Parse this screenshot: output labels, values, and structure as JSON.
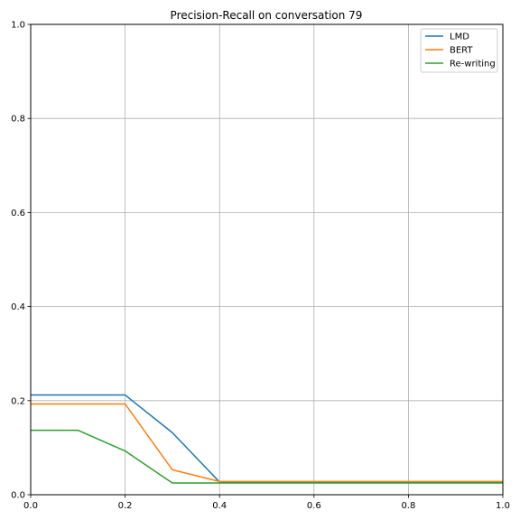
{
  "chart_data": {
    "type": "line",
    "title": "Precision-Recall on conversation 79",
    "xlabel": "",
    "ylabel": "",
    "xlim": [
      0.0,
      1.0
    ],
    "ylim": [
      0.0,
      1.0
    ],
    "xticks": [
      "0.0",
      "0.2",
      "0.4",
      "0.6",
      "0.8",
      "1.0"
    ],
    "yticks": [
      "0.0",
      "0.2",
      "0.4",
      "0.6",
      "0.8",
      "1.0"
    ],
    "grid": true,
    "legend_position": "top-right",
    "x": [
      0.0,
      0.1,
      0.2,
      0.3,
      0.4,
      0.5,
      0.6,
      0.7,
      0.8,
      0.9,
      1.0
    ],
    "series": [
      {
        "name": "LMD",
        "color": "#1f77b4",
        "values": [
          0.212,
          0.212,
          0.212,
          0.132,
          0.027,
          0.027,
          0.027,
          0.027,
          0.027,
          0.027,
          0.027
        ]
      },
      {
        "name": "BERT",
        "color": "#ff7f0e",
        "values": [
          0.193,
          0.193,
          0.193,
          0.053,
          0.028,
          0.028,
          0.028,
          0.028,
          0.028,
          0.028,
          0.028
        ]
      },
      {
        "name": "Re-writing",
        "color": "#2ca02c",
        "values": [
          0.137,
          0.137,
          0.093,
          0.025,
          0.025,
          0.025,
          0.025,
          0.025,
          0.025,
          0.025,
          0.025
        ]
      }
    ]
  }
}
